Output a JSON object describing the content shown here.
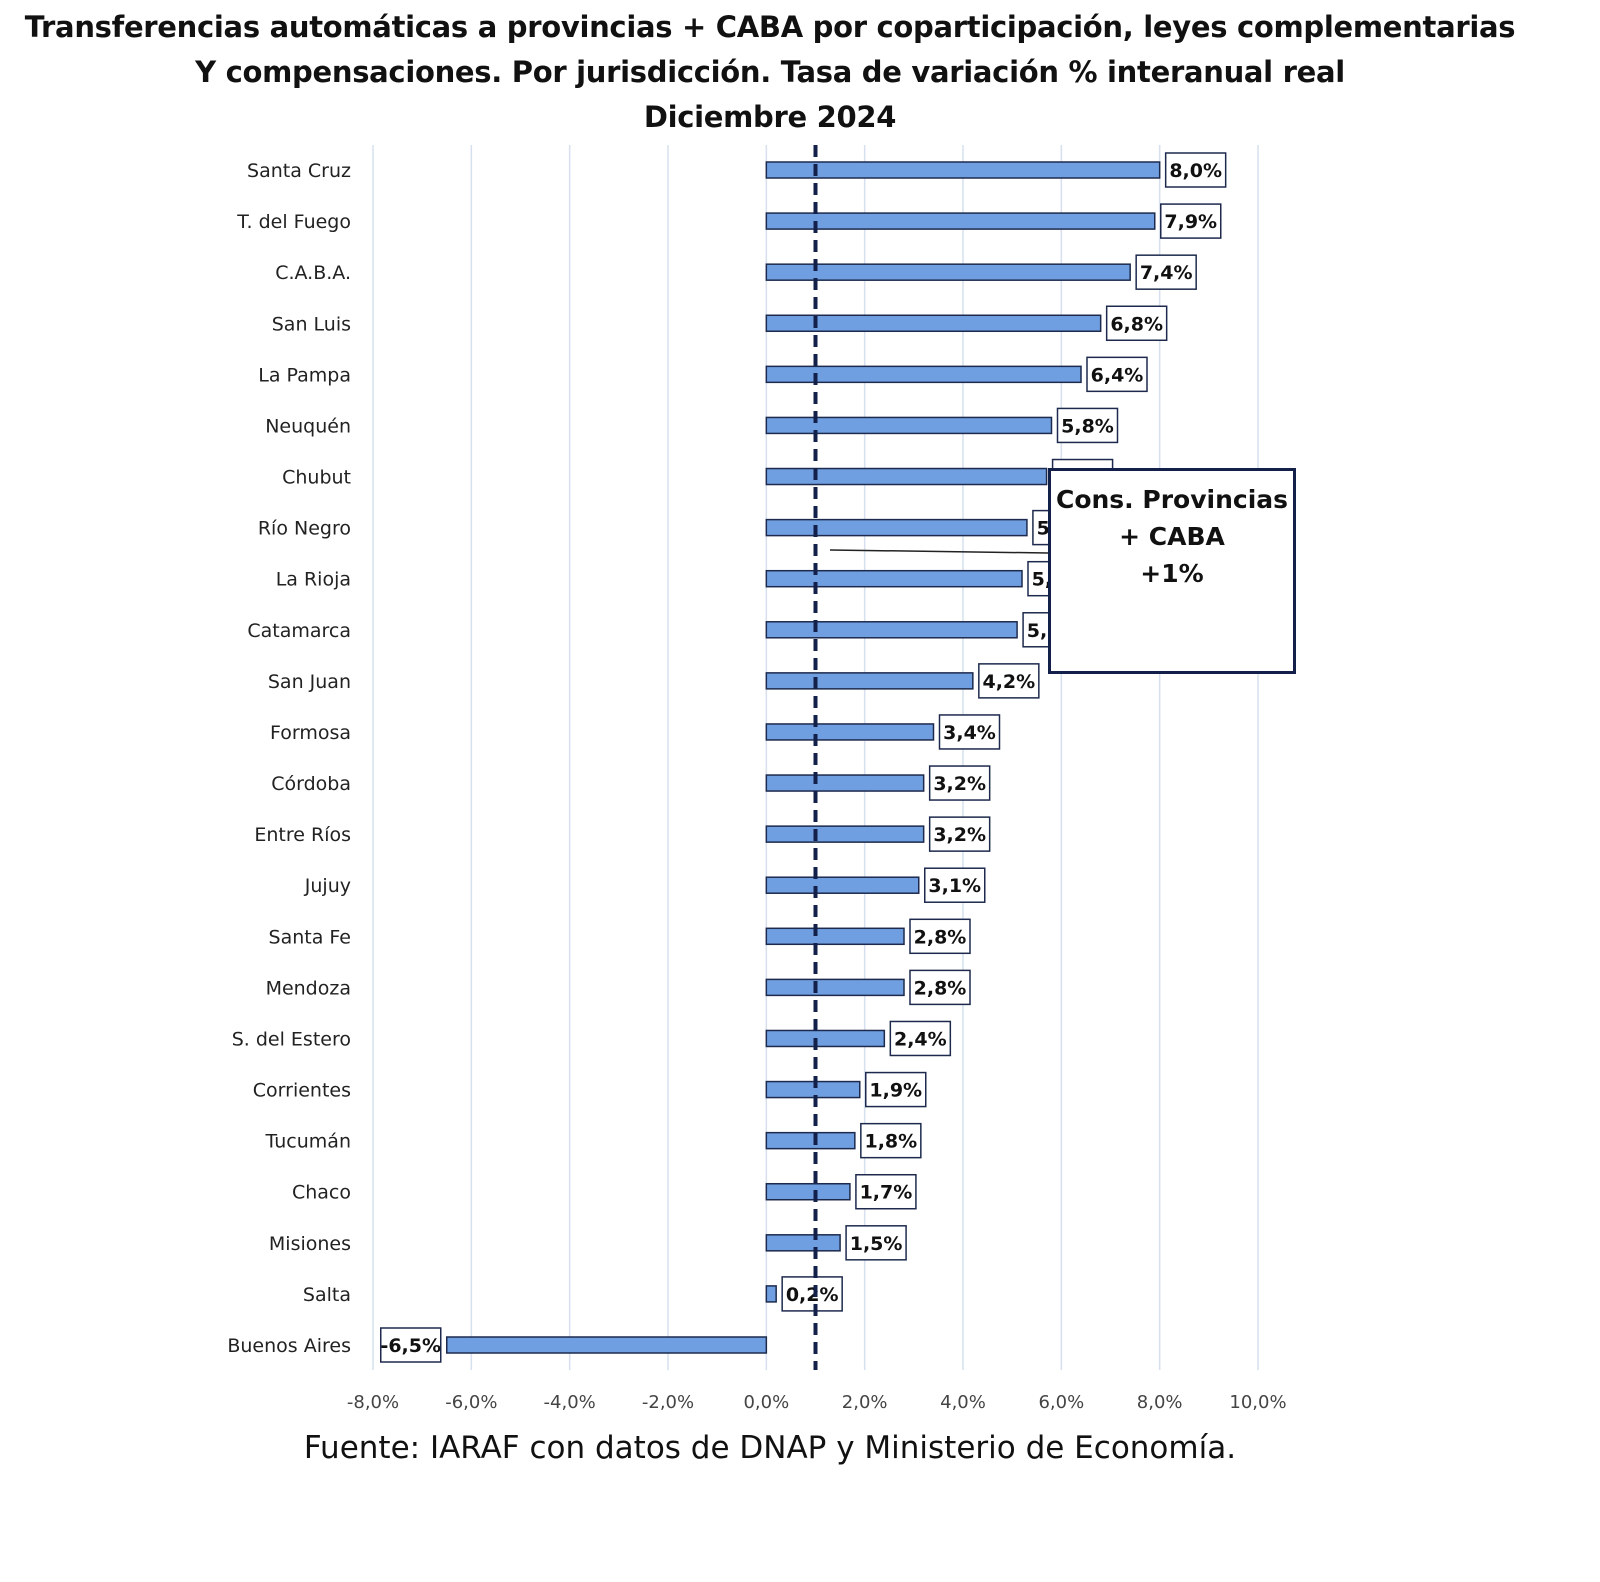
{
  "chart_data": {
    "type": "bar",
    "orientation": "horizontal",
    "title": [
      "Transferencias automáticas a provincias + CABA por coparticipación, leyes complementarias",
      "Y compensaciones. Por jurisdicción. Tasa de variación % interanual real",
      "Diciembre 2024"
    ],
    "categories": [
      "Santa Cruz",
      "T. del Fuego",
      "C.A.B.A.",
      "San Luis",
      "La Pampa",
      "Neuquén",
      "Chubut",
      "Río Negro",
      "La Rioja",
      "Catamarca",
      "San Juan",
      "Formosa",
      "Córdoba",
      "Entre Ríos",
      "Jujuy",
      "Santa Fe",
      "Mendoza",
      "S. del Estero",
      "Corrientes",
      "Tucumán",
      "Chaco",
      "Misiones",
      "Salta",
      "Buenos Aires"
    ],
    "values": [
      8.0,
      7.9,
      7.4,
      6.8,
      6.4,
      5.8,
      5.7,
      5.3,
      5.2,
      5.1,
      4.2,
      3.4,
      3.2,
      3.2,
      3.1,
      2.8,
      2.8,
      2.4,
      1.9,
      1.8,
      1.7,
      1.5,
      0.2,
      -6.5
    ],
    "data_labels": [
      "8,0%",
      "7,9%",
      "7,4%",
      "6,8%",
      "6,4%",
      "5,8%",
      "5,7%",
      "5,3%",
      "5,2%",
      "5,1%",
      "4,2%",
      "3,4%",
      "3,2%",
      "3,2%",
      "3,1%",
      "2,8%",
      "2,8%",
      "2,4%",
      "1,9%",
      "1,8%",
      "1,7%",
      "1,5%",
      "0,2%",
      "-6,5%"
    ],
    "xlim": [
      -8,
      10
    ],
    "xticks": [
      -8,
      -6,
      -4,
      -2,
      0,
      2,
      4,
      6,
      8,
      10
    ],
    "xtick_labels": [
      "-8,0%",
      "-6,0%",
      "-4,0%",
      "-2,0%",
      "0,0%",
      "2,0%",
      "4,0%",
      "6,0%",
      "8,0%",
      "10,0%"
    ],
    "reference_line": {
      "value": 1,
      "style": "dashed"
    },
    "annotation": [
      "Cons. Provincias",
      "+ CABA",
      "+1%"
    ],
    "grid": true,
    "bar_color": "#6f9fe0",
    "source": "Fuente: IARAF con datos de DNAP y Ministerio de Economía."
  }
}
